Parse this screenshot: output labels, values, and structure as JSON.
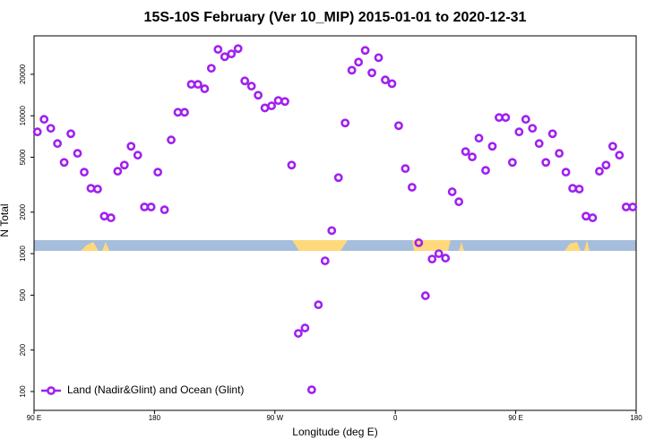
{
  "chart_data": {
    "type": "scatter",
    "title": "15S-10S February (Ver 10_MIP)   2015-01-01 to 2020-12-31",
    "xlabel": "Longitude (deg E)",
    "ylabel": "N Total",
    "xlim": [
      90,
      540
    ],
    "xticks": [
      {
        "value": 90,
        "label": "90 E"
      },
      180,
      {
        "value": 270,
        "label": "90 W"
      },
      {
        "value": 360,
        "label": "0"
      },
      {
        "value": 450,
        "label": "90 E"
      },
      {
        "value": 540,
        "label": "180"
      }
    ],
    "ylim": [
      73,
      38000
    ],
    "log_y": true,
    "yticks": [
      100,
      200,
      500,
      1000,
      2000,
      5000,
      10000,
      20000
    ],
    "legend": "bottom-left",
    "series": [
      {
        "name": "Land (Nadir&Glint) and Ocean (Glint)",
        "color": "#a020f0",
        "x": [
          92.5,
          97.5,
          102.5,
          107.5,
          112.5,
          117.5,
          122.5,
          127.5,
          132.5,
          137.5,
          142.5,
          147.5,
          152.5,
          157.5,
          162.5,
          167.5,
          172.5,
          177.5,
          182.5,
          187.5,
          192.5,
          197.5,
          202.5,
          207.5,
          212.5,
          217.5,
          222.5,
          227.5,
          232.5,
          237.5,
          242.5,
          247.5,
          252.5,
          257.5,
          262.5,
          267.5,
          272.5,
          277.5,
          282.5,
          287.5,
          292.5,
          297.5,
          302.5,
          307.5,
          312.5,
          317.5,
          322.5,
          327.5,
          332.5,
          337.5,
          342.5,
          347.5,
          352.5,
          357.5,
          362.5,
          367.5,
          372.5,
          377.5,
          382.5,
          387.5,
          392.5,
          397.5,
          402.5,
          407.5,
          412.5,
          417.5,
          422.5,
          427.5,
          432.5,
          437.5,
          442.5,
          447.5,
          452.5,
          457.5,
          462.5,
          467.5,
          472.5,
          477.5,
          482.5,
          487.5,
          492.5,
          497.5,
          502.5,
          507.5,
          512.5,
          517.5,
          522.5,
          527.5,
          532.5,
          537.5
        ],
        "values": [
          7640,
          9420,
          8110,
          6290,
          4590,
          7410,
          5340,
          3900,
          2980,
          2940,
          1870,
          1820,
          3960,
          4390,
          6010,
          5180,
          2180,
          2180,
          3900,
          2080,
          6680,
          10600,
          10600,
          16900,
          16900,
          15700,
          22100,
          30300,
          26800,
          28100,
          30700,
          17900,
          16400,
          14100,
          11400,
          11800,
          12900,
          12700,
          4390,
          264,
          289,
          103,
          426,
          887,
          1470,
          3560,
          8870,
          21400,
          24500,
          29800,
          20500,
          26400,
          18200,
          17100,
          8480,
          4140,
          3030,
          1200,
          495,
          914,
          1000,
          928,
          2810,
          2380,
          5500,
          5030,
          6880,
          4020,
          6010,
          9710,
          9710,
          4590,
          7640,
          9420,
          8110,
          6290,
          4590,
          7410,
          5340,
          3900,
          2980,
          2940,
          1870,
          1820,
          3960,
          4390,
          6010,
          5180,
          2180,
          2180
        ]
      }
    ]
  }
}
